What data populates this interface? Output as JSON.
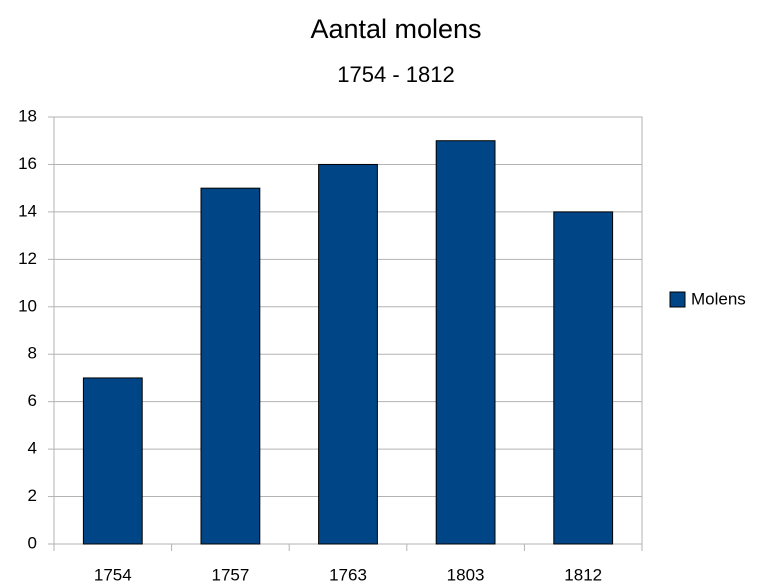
{
  "chart_data": {
    "type": "bar",
    "title": "Aantal molens",
    "subtitle": "1754 - 1812",
    "categories": [
      "1754",
      "1757",
      "1763",
      "1803",
      "1812"
    ],
    "series": [
      {
        "name": "Molens",
        "color": "#004586",
        "values": [
          7,
          15,
          16,
          17,
          14
        ]
      }
    ],
    "ylim": [
      0,
      18
    ],
    "yticks": [
      0,
      2,
      4,
      6,
      8,
      10,
      12,
      14,
      16,
      18
    ],
    "grid": true,
    "legend": "right"
  }
}
